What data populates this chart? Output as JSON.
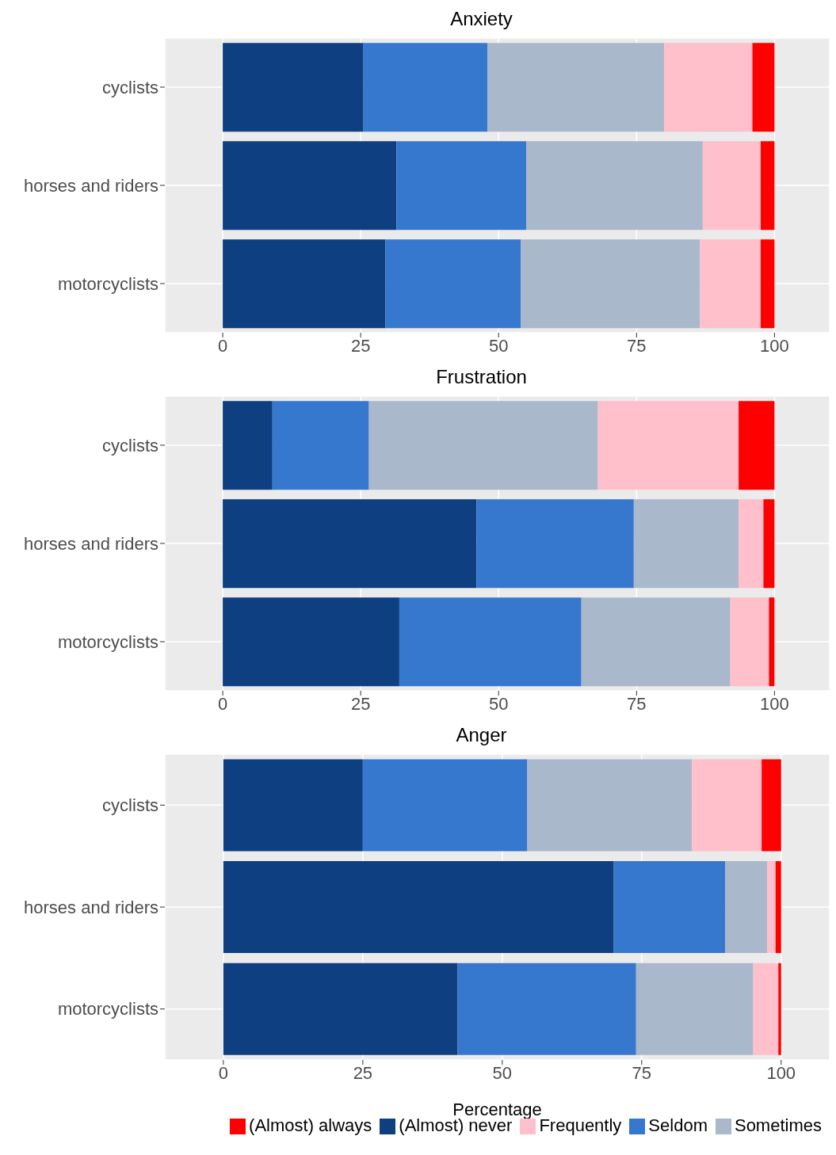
{
  "chart_data": [
    {
      "type": "bar",
      "orientation": "horizontal",
      "stacked": true,
      "title": "Anxiety",
      "categories": [
        "cyclists",
        "horses and riders",
        "motorcyclists"
      ],
      "xlim": [
        -10.5,
        110
      ],
      "xticks": [
        0,
        25,
        50,
        75,
        100
      ],
      "grid": true,
      "series": [
        {
          "color": "#0e3f80",
          "values": [
            25.5,
            31.5,
            29.5
          ]
        },
        {
          "color": "#3778cf",
          "values": [
            22.5,
            23.5,
            24.5
          ]
        },
        {
          "color": "#aab8cb",
          "values": [
            32,
            32,
            32.5
          ]
        },
        {
          "color": "#ffbfcb",
          "values": [
            16,
            10.5,
            11
          ]
        },
        {
          "color": "#ff0000",
          "values": [
            4,
            2.5,
            2.5
          ]
        }
      ]
    },
    {
      "type": "bar",
      "orientation": "horizontal",
      "stacked": true,
      "title": "Frustration",
      "categories": [
        "cyclists",
        "horses and riders",
        "motorcyclists"
      ],
      "xlim": [
        -10.5,
        110
      ],
      "xticks": [
        0,
        25,
        50,
        75,
        100
      ],
      "grid": true,
      "series": [
        {
          "color": "#0e3f80",
          "values": [
            9,
            46,
            32
          ]
        },
        {
          "color": "#3778cf",
          "values": [
            17.5,
            28.5,
            33
          ]
        },
        {
          "color": "#aab8cb",
          "values": [
            41.5,
            19,
            27
          ]
        },
        {
          "color": "#ffbfcb",
          "values": [
            25.5,
            4.5,
            7
          ]
        },
        {
          "color": "#ff0000",
          "values": [
            6.5,
            2,
            1
          ]
        }
      ]
    },
    {
      "type": "bar",
      "orientation": "horizontal",
      "stacked": true,
      "title": "Anger",
      "xlabel": "Percentage",
      "legend": "bottom",
      "categories": [
        "cyclists",
        "horses and riders",
        "motorcyclists"
      ],
      "xlim": [
        -10.5,
        108.7
      ],
      "xticks": [
        0,
        25,
        50,
        75,
        100
      ],
      "grid": true,
      "series": [
        {
          "name": "(Almost) never",
          "color": "#0e3f80",
          "values": [
            25,
            70,
            42
          ]
        },
        {
          "name": "Seldom",
          "color": "#3778cf",
          "values": [
            29.5,
            20,
            32
          ]
        },
        {
          "name": "Sometimes",
          "color": "#aab8cb",
          "values": [
            29.5,
            7.5,
            21
          ]
        },
        {
          "name": "Frequently",
          "color": "#ffbfcb",
          "values": [
            12.5,
            1.5,
            4.5
          ]
        },
        {
          "name": "(Almost) always",
          "color": "#ff0000",
          "values": [
            3.5,
            1,
            0.5
          ]
        }
      ]
    }
  ]
}
